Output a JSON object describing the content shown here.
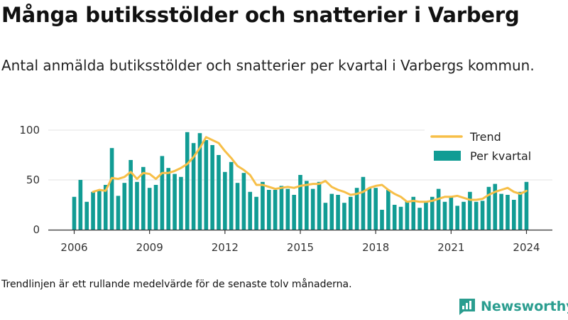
{
  "header": {
    "title": "Många butiksstölder och snatterier i Varberg",
    "subtitle": "Antal anmälda butiksstölder och snatterier per kvartal i Varbergs kommun."
  },
  "footnote": "Trendlinjen är ett rullande medelvärde för de senaste tolv månaderna.",
  "brand": {
    "name": "Newsworthy"
  },
  "colors": {
    "bar": "#119c94",
    "trend": "#f7bf48",
    "grid": "#e3e3e3",
    "axis": "#333333",
    "brand": "#2a9d8f"
  },
  "chart_data": {
    "type": "bar",
    "xlabel": "",
    "ylabel": "",
    "ylim": [
      0,
      100
    ],
    "yticks": [
      0,
      50,
      100
    ],
    "xticks": [
      "2006",
      "2009",
      "2012",
      "2015",
      "2018",
      "2021",
      "2024"
    ],
    "x_start": "2006 Q1",
    "legend": {
      "placement": "top-right",
      "entries": [
        "Trend",
        "Per kvartal"
      ]
    },
    "series": [
      {
        "name": "Per kvartal",
        "type": "bar",
        "values": [
          33,
          50,
          28,
          38,
          40,
          45,
          82,
          34,
          47,
          70,
          48,
          63,
          42,
          45,
          74,
          62,
          56,
          53,
          98,
          87,
          97,
          90,
          85,
          75,
          58,
          68,
          47,
          57,
          38,
          33,
          48,
          40,
          40,
          44,
          41,
          35,
          55,
          49,
          41,
          48,
          27,
          36,
          35,
          27,
          33,
          42,
          53,
          42,
          42,
          20,
          40,
          25,
          23,
          29,
          33,
          22,
          28,
          33,
          41,
          28,
          33,
          24,
          28,
          38,
          28,
          29,
          43,
          46,
          36,
          35,
          30,
          38,
          48
        ]
      },
      {
        "name": "Trend",
        "type": "line",
        "values": [
          null,
          null,
          null,
          38,
          40,
          39,
          52,
          51,
          53,
          58,
          51,
          57,
          56,
          51,
          57,
          57,
          59,
          62,
          66,
          73,
          82,
          93,
          90,
          87,
          79,
          72,
          64,
          60,
          55,
          45,
          45,
          43,
          41,
          42,
          43,
          42,
          44,
          45,
          46,
          46,
          49,
          43,
          40,
          38,
          35,
          36,
          38,
          42,
          44,
          45,
          40,
          36,
          33,
          28,
          29,
          28,
          28,
          29,
          31,
          33,
          33,
          34,
          32,
          30,
          30,
          31,
          35,
          38,
          40,
          42,
          38,
          36,
          39
        ]
      }
    ]
  }
}
